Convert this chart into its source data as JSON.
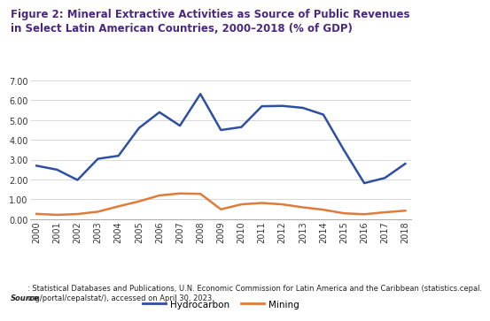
{
  "title_line1": "Figure 2: Mineral Extractive Activities as Source of Public Revenues",
  "title_line2": "in Select Latin American Countries, 2000–2018 (% of GDP)",
  "title_color": "#4a2882",
  "years": [
    2000,
    2001,
    2002,
    2003,
    2004,
    2005,
    2006,
    2007,
    2008,
    2009,
    2010,
    2011,
    2012,
    2013,
    2014,
    2015,
    2016,
    2017,
    2018
  ],
  "hydrocarbon": [
    2.7,
    2.5,
    1.98,
    3.05,
    3.2,
    4.6,
    5.4,
    4.72,
    6.32,
    4.5,
    4.65,
    5.7,
    5.72,
    5.62,
    5.28,
    3.5,
    1.82,
    2.08,
    2.8
  ],
  "mining": [
    0.27,
    0.22,
    0.26,
    0.38,
    0.65,
    0.9,
    1.2,
    1.3,
    1.28,
    0.5,
    0.75,
    0.82,
    0.75,
    0.6,
    0.48,
    0.3,
    0.25,
    0.35,
    0.43
  ],
  "hydrocarbon_color": "#2e4fa3",
  "mining_color": "#e07b39",
  "ylim": [
    0,
    7.0
  ],
  "yticks": [
    0.0,
    1.0,
    2.0,
    3.0,
    4.0,
    5.0,
    6.0,
    7.0
  ],
  "source_bold": "Source",
  "source_text": ": Statistical Databases and Publications, U.N. Economic Commission for Latin America and the Caribbean (statistics.cepal.\norg/portal/cepalstat/), accessed on April 30, 2023.",
  "legend_labels": [
    "Hydrocarbon",
    "Mining"
  ],
  "bg_color": "#ffffff",
  "line_width": 1.8,
  "title_fontsize": 8.5,
  "tick_fontsize": 7.0,
  "source_fontsize": 6.0,
  "legend_fontsize": 7.5
}
